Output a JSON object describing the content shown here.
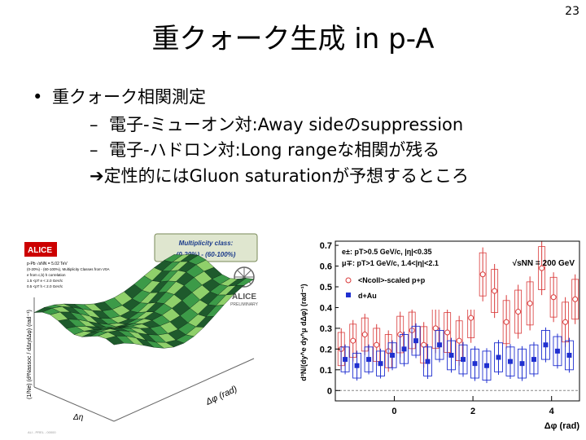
{
  "slide": {
    "number": "23",
    "title": "重クォーク生成 in p-A",
    "bullet": "重クォーク相関測定",
    "sub1": "電子-ミューオン対:Away sideのsuppression",
    "sub2": "電子-ハドロン対:Long rangeな相関が残る",
    "conclusion": "定性的にはGluon saturationが予想するところ"
  },
  "left_figure": {
    "badge": "ALICE",
    "class_header": "Multiplicity class:",
    "class_value": "(0-20%) - (60-100%)",
    "info": [
      "p-Pb  √sNN = 5.02 TeV",
      "(0-20%) - (60-100%), Multiplicity Classes from V0A",
      "e from c,b) h correlation",
      "1.5 <pT e < 2.0 GeV/c",
      "0.5 <pT h < 2.0 GeV/c"
    ],
    "logo_text": "ALICE",
    "logo_sub": "PRELIMINARY",
    "zlabel": "(1/Ne) (d²Nassoc / dΔηdΔφ) (rad⁻¹)",
    "xlabel": "Δη",
    "ylabel": "Δφ (rad)",
    "footer": "ALI - PREL - 00000",
    "colors": {
      "surface_dark": "#1e5a2c",
      "surface_mid": "#3c9a48",
      "surface_light": "#8fd06a",
      "badge_bg": "#cc0000"
    }
  },
  "chart_data": {
    "type": "scatter",
    "xlabel": "Δφ (rad)",
    "ylabel": "d³N/(dy^e dy^μ dΔφ) (rad⁻¹)",
    "xlim": [
      -1.5,
      4.71
    ],
    "ylim": [
      -0.05,
      0.72
    ],
    "yticks": [
      0,
      0.1,
      0.2,
      0.3,
      0.4,
      0.5,
      0.6,
      0.7
    ],
    "ytick_labels": [
      "0",
      "0.1",
      "0.2",
      "0.3",
      "0.4",
      "0.5",
      "0.6",
      "0.7"
    ],
    "xticks": [
      0,
      2,
      4
    ],
    "legend": [
      "e±: pT>0.5 GeV/c, |η|<0.35",
      "μ∓: pT>1 GeV/c, 1.4<|η|<2.1",
      "<Ncoll>-scaled p+p",
      "d+Au"
    ],
    "energy_label": "√sNN = 200 GeV",
    "series": [
      {
        "name": "<Ncoll>-scaled p+p",
        "x": [
          -1.35,
          -1.05,
          -0.75,
          -0.45,
          -0.15,
          0.15,
          0.45,
          0.75,
          1.05,
          1.35,
          1.65,
          1.95,
          2.25,
          2.55,
          2.85,
          3.15,
          3.45,
          3.75,
          4.05,
          4.35,
          4.6
        ],
        "y": [
          0.2,
          0.24,
          0.27,
          0.22,
          0.19,
          0.27,
          0.29,
          0.22,
          0.3,
          0.28,
          0.24,
          0.35,
          0.56,
          0.48,
          0.33,
          0.38,
          0.42,
          0.59,
          0.45,
          0.33,
          0.44
        ],
        "err": [
          0.1,
          0.1,
          0.1,
          0.1,
          0.1,
          0.11,
          0.11,
          0.11,
          0.12,
          0.12,
          0.12,
          0.12,
          0.13,
          0.13,
          0.13,
          0.13,
          0.13,
          0.13,
          0.12,
          0.12,
          0.12
        ],
        "color": "#d93a3a"
      },
      {
        "name": "d+Au",
        "x": [
          -1.25,
          -0.95,
          -0.65,
          -0.35,
          -0.05,
          0.25,
          0.55,
          0.85,
          1.15,
          1.45,
          1.75,
          2.05,
          2.35,
          2.65,
          2.95,
          3.25,
          3.55,
          3.85,
          4.15,
          4.45
        ],
        "y": [
          0.15,
          0.12,
          0.15,
          0.13,
          0.17,
          0.2,
          0.24,
          0.14,
          0.22,
          0.17,
          0.15,
          0.13,
          0.12,
          0.16,
          0.14,
          0.13,
          0.15,
          0.22,
          0.19,
          0.17
        ],
        "err": [
          0.06,
          0.06,
          0.06,
          0.06,
          0.06,
          0.07,
          0.07,
          0.07,
          0.07,
          0.07,
          0.07,
          0.07,
          0.07,
          0.07,
          0.07,
          0.07,
          0.07,
          0.07,
          0.07,
          0.07
        ],
        "color": "#2030d0"
      }
    ]
  }
}
